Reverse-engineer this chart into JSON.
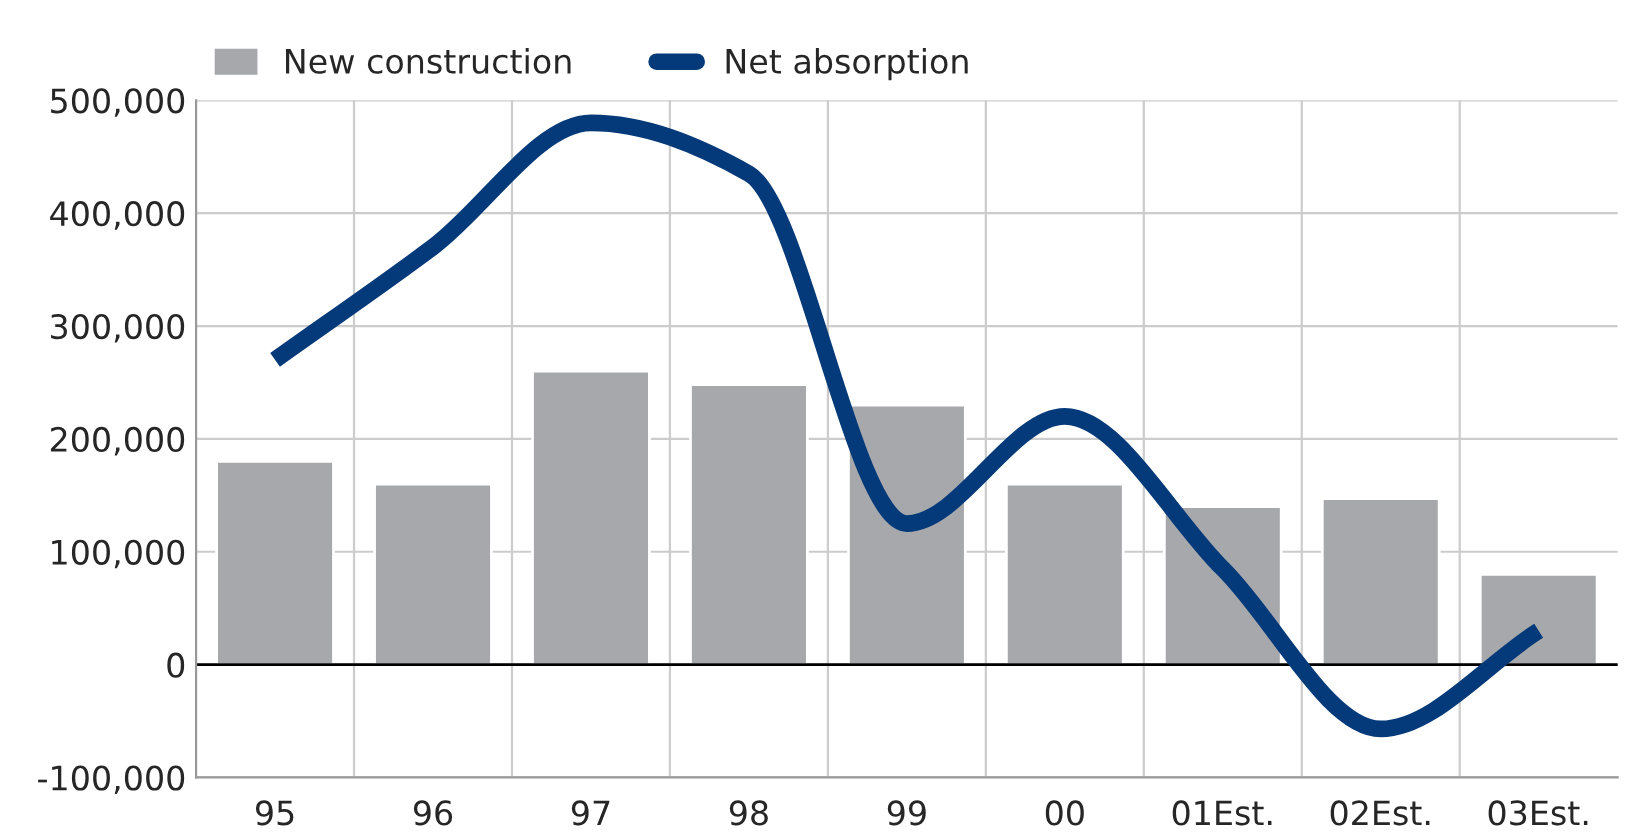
{
  "chart_data": {
    "type": "bar",
    "categories": [
      "95",
      "96",
      "97",
      "98",
      "99",
      "00",
      "01Est.",
      "02Est.",
      "03Est."
    ],
    "series": [
      {
        "name": "New construction",
        "color": "#a7a8ab",
        "values": [
          180000,
          160000,
          260000,
          248000,
          230000,
          160000,
          140000,
          147000,
          80000
        ]
      },
      {
        "name": "Net absorption",
        "type": "line",
        "color": "#053a7a",
        "values": [
          270000,
          370000,
          480000,
          435000,
          125000,
          220000,
          85000,
          -57000,
          30000
        ]
      }
    ],
    "ylim": [
      -100000,
      500000
    ],
    "yticks": [
      {
        "value": -100000,
        "label": "-100,000"
      },
      0,
      {
        "value": 100000,
        "label": "100,000"
      },
      {
        "value": 200000,
        "label": "200,000"
      },
      {
        "value": 300000,
        "label": "300,000"
      },
      {
        "value": 400000,
        "label": "400,000"
      },
      {
        "value": 500000,
        "label": "500,000"
      }
    ],
    "ref_lines": [
      {
        "axis": "y",
        "value": 0,
        "color": "#000000"
      }
    ],
    "grid": true,
    "legend": "top left"
  }
}
